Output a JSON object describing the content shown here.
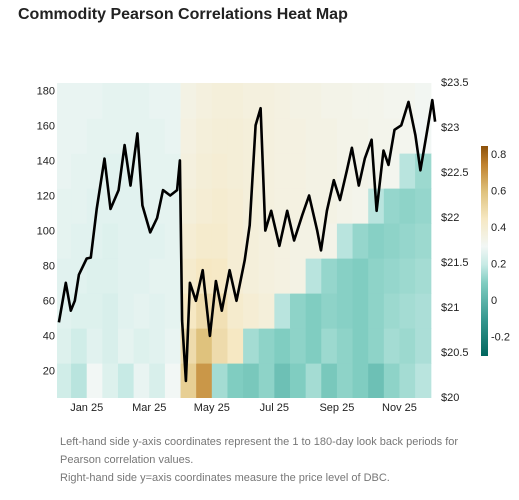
{
  "chart_data": {
    "type": "heatmap",
    "title": "Commodity Pearson Correlations Heat Map",
    "xlim": [
      -0.95,
      11.2
    ],
    "xticks": [
      {
        "value": 0,
        "label": "Jan 25"
      },
      {
        "value": 2,
        "label": "Mar 25"
      },
      {
        "value": 4,
        "label": "May 25"
      },
      {
        "value": 6,
        "label": "Jul 25"
      },
      {
        "value": 8,
        "label": "Sep 25"
      },
      {
        "value": 10,
        "label": "Nov 25"
      }
    ],
    "ylim": [
      5,
      185
    ],
    "yticks": [
      20,
      40,
      60,
      80,
      100,
      120,
      140,
      160,
      180
    ],
    "y2lim": [
      20,
      23.5
    ],
    "y2ticks": [
      {
        "value": 20,
        "label": "$20"
      },
      {
        "value": 20.5,
        "label": "$20.5"
      },
      {
        "value": 21,
        "label": "$21"
      },
      {
        "value": 21.5,
        "label": "$21.5"
      },
      {
        "value": 22,
        "label": "$22"
      },
      {
        "value": 22.5,
        "label": "$22.5"
      },
      {
        "value": 23,
        "label": "$23"
      },
      {
        "value": 23.5,
        "label": "$23.5"
      }
    ],
    "heatmap": {
      "x": [
        -0.75,
        -0.25,
        0.25,
        0.75,
        1.25,
        1.75,
        2.25,
        2.75,
        3.25,
        3.75,
        4.25,
        4.75,
        5.25,
        5.75,
        6.25,
        6.75,
        7.25,
        7.75,
        8.25,
        8.75,
        9.25,
        9.75,
        10.25,
        10.75
      ],
      "y": [
        15,
        35,
        55,
        75,
        95,
        115,
        135,
        155,
        175
      ],
      "z": [
        [
          0.22,
          0.18,
          0.3,
          0.25,
          0.2,
          0.28,
          0.24,
          0.3,
          0.55,
          0.7,
          0.15,
          0.1,
          0.08,
          0.12,
          0.05,
          0.1,
          0.15,
          0.08,
          0.12,
          0.1,
          0.05,
          0.12,
          0.15,
          0.18
        ],
        [
          0.25,
          0.22,
          0.26,
          0.24,
          0.27,
          0.25,
          0.26,
          0.28,
          0.5,
          0.6,
          0.5,
          0.45,
          0.15,
          0.12,
          0.1,
          0.12,
          0.1,
          0.14,
          0.12,
          0.1,
          0.12,
          0.15,
          0.14,
          0.16
        ],
        [
          0.26,
          0.25,
          0.25,
          0.24,
          0.26,
          0.27,
          0.26,
          0.27,
          0.45,
          0.5,
          0.48,
          0.42,
          0.4,
          0.38,
          0.18,
          0.12,
          0.1,
          0.12,
          0.11,
          0.1,
          0.12,
          0.14,
          0.15,
          0.16
        ],
        [
          0.26,
          0.26,
          0.25,
          0.25,
          0.26,
          0.26,
          0.27,
          0.27,
          0.42,
          0.45,
          0.44,
          0.4,
          0.38,
          0.37,
          0.36,
          0.35,
          0.18,
          0.13,
          0.11,
          0.1,
          0.12,
          0.13,
          0.14,
          0.15
        ],
        [
          0.27,
          0.26,
          0.26,
          0.25,
          0.26,
          0.26,
          0.26,
          0.27,
          0.4,
          0.42,
          0.42,
          0.4,
          0.38,
          0.37,
          0.36,
          0.35,
          0.35,
          0.34,
          0.18,
          0.13,
          0.11,
          0.12,
          0.13,
          0.14
        ],
        [
          0.27,
          0.27,
          0.26,
          0.26,
          0.26,
          0.26,
          0.27,
          0.27,
          0.38,
          0.4,
          0.41,
          0.4,
          0.38,
          0.37,
          0.36,
          0.36,
          0.35,
          0.35,
          0.34,
          0.33,
          0.18,
          0.13,
          0.12,
          0.13
        ],
        [
          0.28,
          0.27,
          0.27,
          0.26,
          0.26,
          0.27,
          0.27,
          0.27,
          0.37,
          0.39,
          0.4,
          0.39,
          0.38,
          0.37,
          0.36,
          0.36,
          0.35,
          0.35,
          0.34,
          0.34,
          0.33,
          0.32,
          0.18,
          0.14
        ],
        [
          0.28,
          0.28,
          0.27,
          0.27,
          0.27,
          0.27,
          0.27,
          0.28,
          0.36,
          0.38,
          0.39,
          0.39,
          0.38,
          0.37,
          0.36,
          0.36,
          0.35,
          0.35,
          0.34,
          0.34,
          0.33,
          0.33,
          0.32,
          0.3
        ],
        [
          0.28,
          0.28,
          0.28,
          0.27,
          0.27,
          0.27,
          0.28,
          0.28,
          0.35,
          0.37,
          0.38,
          0.38,
          0.37,
          0.37,
          0.36,
          0.35,
          0.35,
          0.34,
          0.34,
          0.33,
          0.33,
          0.32,
          0.32,
          0.31
        ]
      ],
      "colorscale": [
        [
          -0.3,
          "#01665e"
        ],
        [
          -0.1,
          "#35978f"
        ],
        [
          0.1,
          "#80cdc1"
        ],
        [
          0.2,
          "#c7eae5"
        ],
        [
          0.3,
          "#f2f7f5"
        ],
        [
          0.45,
          "#f6e8c3"
        ],
        [
          0.6,
          "#dfc27d"
        ],
        [
          0.75,
          "#bf812d"
        ],
        [
          0.85,
          "#8c510a"
        ]
      ]
    },
    "colorbar": {
      "range": [
        -0.3,
        0.85
      ],
      "ticks": [
        -0.2,
        0,
        0.2,
        0.4,
        0.6,
        0.8
      ]
    },
    "series": [
      {
        "color": "#000000",
        "axis": "y2",
        "x": [
          -0.89,
          -0.67,
          -0.51,
          -0.38,
          -0.25,
          0,
          0.13,
          0.32,
          0.57,
          0.76,
          1.02,
          1.21,
          1.4,
          1.62,
          1.78,
          2.03,
          2.25,
          2.44,
          2.67,
          2.89,
          2.98,
          3.05,
          3.17,
          3.3,
          3.49,
          3.71,
          3.94,
          4.13,
          4.32,
          4.57,
          4.79,
          5.05,
          5.21,
          5.4,
          5.56,
          5.71,
          5.9,
          6.16,
          6.41,
          6.63,
          6.89,
          7.11,
          7.37,
          7.49,
          7.68,
          7.9,
          8.1,
          8.32,
          8.48,
          8.7,
          8.89,
          9.11,
          9.27,
          9.49,
          9.65,
          9.84,
          10.06,
          10.29,
          10.51,
          10.67,
          10.86,
          11.05,
          11.14
        ],
        "values": [
          20.84,
          21.28,
          20.97,
          21.08,
          21.37,
          21.55,
          21.56,
          22.1,
          22.66,
          22.1,
          22.31,
          22.81,
          22.36,
          22.94,
          22.14,
          21.84,
          22.0,
          22.31,
          22.25,
          22.31,
          22.64,
          20.86,
          20.19,
          21.28,
          21.08,
          21.42,
          20.69,
          21.3,
          20.97,
          21.42,
          21.08,
          21.53,
          21.92,
          23.03,
          23.22,
          21.86,
          22.08,
          21.69,
          22.08,
          21.75,
          22.03,
          22.25,
          21.86,
          21.64,
          22.08,
          22.42,
          22.2,
          22.53,
          22.78,
          22.36,
          22.66,
          22.87,
          22.08,
          22.75,
          22.59,
          22.98,
          23.03,
          23.29,
          22.92,
          22.53,
          22.92,
          23.31,
          23.07
        ]
      }
    ],
    "annotations": [
      "Left-hand side y-axis coordinates represent the 1 to 180-day look back periods for Pearson correlation values.",
      "Right-hand side y=axis coordinates measure the price level of DBC."
    ]
  }
}
